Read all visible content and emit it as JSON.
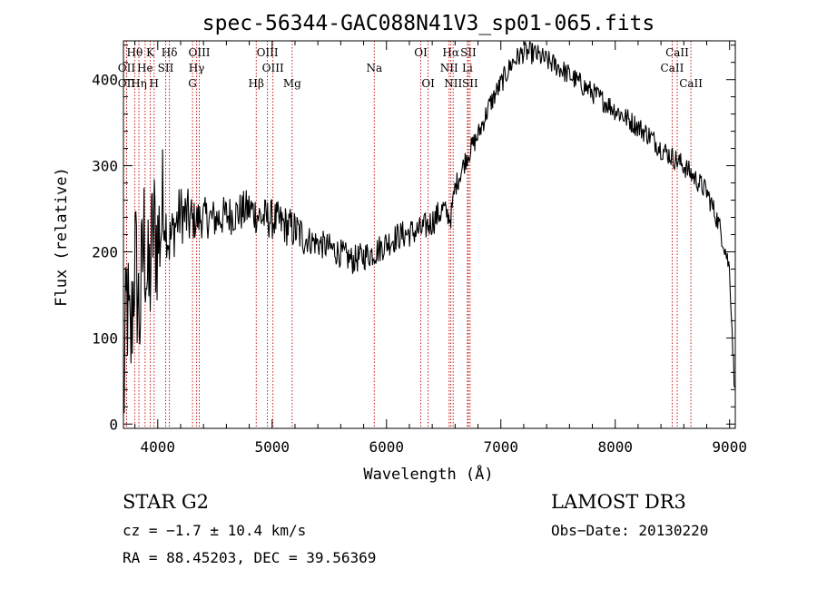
{
  "chart_data": {
    "type": "line",
    "title": "spec-56344-GAC088N41V3_sp01-065.fits",
    "xlabel": "Wavelength (Å)",
    "ylabel": "Flux (relative)",
    "xlim": [
      3700,
      9050
    ],
    "ylim": [
      -5,
      445
    ],
    "xticks": [
      4000,
      5000,
      6000,
      7000,
      8000,
      9000
    ],
    "yticks": [
      0,
      100,
      200,
      300,
      400
    ],
    "series": [
      {
        "name": "flux",
        "x": [
          3700,
          3730,
          3760,
          3800,
          3840,
          3880,
          3920,
          3960,
          4000,
          4050,
          4100,
          4150,
          4200,
          4300,
          4400,
          4500,
          4600,
          4700,
          4800,
          4900,
          5000,
          5100,
          5200,
          5300,
          5400,
          5500,
          5600,
          5700,
          5800,
          5900,
          6000,
          6100,
          6200,
          6300,
          6400,
          6500,
          6560,
          6600,
          6700,
          6800,
          6900,
          7000,
          7100,
          7200,
          7300,
          7400,
          7500,
          7600,
          7700,
          7800,
          7900,
          8000,
          8100,
          8200,
          8300,
          8400,
          8500,
          8600,
          8700,
          8800,
          8900,
          8950,
          9000,
          9050
        ],
        "y": [
          20,
          150,
          80,
          200,
          120,
          220,
          150,
          230,
          210,
          250,
          210,
          230,
          245,
          235,
          240,
          238,
          242,
          245,
          250,
          240,
          238,
          232,
          225,
          215,
          210,
          205,
          198,
          190,
          195,
          200,
          210,
          218,
          222,
          225,
          235,
          250,
          238,
          275,
          310,
          335,
          370,
          395,
          420,
          432,
          430,
          422,
          415,
          405,
          395,
          385,
          375,
          365,
          355,
          345,
          335,
          320,
          310,
          300,
          285,
          270,
          235,
          210,
          180,
          20
        ]
      }
    ],
    "lines": [
      {
        "label": "Hθ",
        "x": 3798,
        "row": 1
      },
      {
        "label": "OII",
        "x": 3727,
        "row": 2
      },
      {
        "label": "OII",
        "x": 3727,
        "row": 3
      },
      {
        "label": "Hη",
        "x": 3835,
        "row": 3
      },
      {
        "label": "K",
        "x": 3934,
        "row": 1
      },
      {
        "label": "He",
        "x": 3889,
        "row": 2
      },
      {
        "label": "H",
        "x": 3968,
        "row": 3
      },
      {
        "label": "Hδ",
        "x": 4102,
        "row": 1
      },
      {
        "label": "SII",
        "x": 4069,
        "row": 2
      },
      {
        "label": "OIII",
        "x": 4363,
        "row": 1
      },
      {
        "label": "Hγ",
        "x": 4340,
        "row": 2
      },
      {
        "label": "G",
        "x": 4304,
        "row": 3
      },
      {
        "label": "OIII",
        "x": 4959,
        "row": 1
      },
      {
        "label": "OIII",
        "x": 5007,
        "row": 2
      },
      {
        "label": "Hβ",
        "x": 4861,
        "row": 3
      },
      {
        "label": "Mg",
        "x": 5175,
        "row": 3
      },
      {
        "label": "Na",
        "x": 5893,
        "row": 2
      },
      {
        "label": "OI",
        "x": 6300,
        "row": 1
      },
      {
        "label": "OI",
        "x": 6364,
        "row": 3
      },
      {
        "label": "Hα",
        "x": 6563,
        "row": 1
      },
      {
        "label": "SII",
        "x": 6716,
        "row": 1
      },
      {
        "label": "NII",
        "x": 6548,
        "row": 2
      },
      {
        "label": "Li",
        "x": 6708,
        "row": 2
      },
      {
        "label": "NII",
        "x": 6583,
        "row": 3
      },
      {
        "label": "SII",
        "x": 6731,
        "row": 3
      },
      {
        "label": "CaII",
        "x": 8542,
        "row": 1
      },
      {
        "label": "CaII",
        "x": 8498,
        "row": 2
      },
      {
        "label": "CaII",
        "x": 8662,
        "row": 3
      }
    ]
  },
  "info": {
    "class_line": "STAR    G2",
    "cz_line": "cz = −1.7 ± 10.4 km/s",
    "radec_line": "RA =  88.45203, DEC =  39.56369",
    "survey": "LAMOST DR3",
    "obs_date": "Obs−Date: 20130220"
  }
}
